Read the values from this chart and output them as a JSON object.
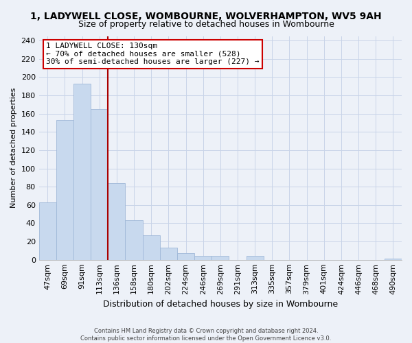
{
  "title": "1, LADYWELL CLOSE, WOMBOURNE, WOLVERHAMPTON, WV5 9AH",
  "subtitle": "Size of property relative to detached houses in Wombourne",
  "xlabel": "Distribution of detached houses by size in Wombourne",
  "ylabel": "Number of detached properties",
  "bar_labels": [
    "47sqm",
    "69sqm",
    "91sqm",
    "113sqm",
    "136sqm",
    "158sqm",
    "180sqm",
    "202sqm",
    "224sqm",
    "246sqm",
    "269sqm",
    "291sqm",
    "313sqm",
    "335sqm",
    "357sqm",
    "379sqm",
    "401sqm",
    "424sqm",
    "446sqm",
    "468sqm",
    "490sqm"
  ],
  "bar_values": [
    63,
    153,
    193,
    165,
    84,
    43,
    27,
    13,
    7,
    4,
    4,
    0,
    4,
    0,
    0,
    0,
    0,
    0,
    0,
    0,
    1
  ],
  "bar_color": "#c8d9ee",
  "bar_edge_color": "#a0b8d8",
  "property_line_x": 3.5,
  "property_line_color": "#aa0000",
  "annotation_title": "1 LADYWELL CLOSE: 130sqm",
  "annotation_line1": "← 70% of detached houses are smaller (528)",
  "annotation_line2": "30% of semi-detached houses are larger (227) →",
  "annotation_box_facecolor": "#ffffff",
  "annotation_box_edgecolor": "#cc0000",
  "ylim": [
    0,
    245
  ],
  "yticks": [
    0,
    20,
    40,
    60,
    80,
    100,
    120,
    140,
    160,
    180,
    200,
    220,
    240
  ],
  "background_color": "#edf1f8",
  "grid_color": "#c8d4e8",
  "footer_line1": "Contains HM Land Registry data © Crown copyright and database right 2024.",
  "footer_line2": "Contains public sector information licensed under the Open Government Licence v3.0.",
  "title_fontsize": 10,
  "subtitle_fontsize": 9,
  "xlabel_fontsize": 9,
  "ylabel_fontsize": 8,
  "tick_fontsize": 8,
  "annotation_fontsize": 8
}
